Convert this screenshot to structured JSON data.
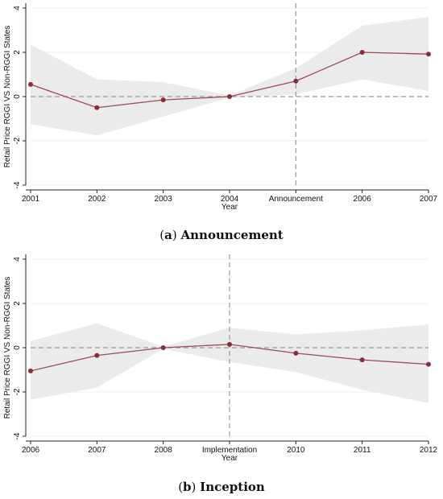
{
  "chart_data": [
    {
      "type": "line",
      "categories": [
        "2001",
        "2002",
        "2003",
        "2004",
        "Announcement",
        "2006",
        "2007"
      ],
      "values": [
        0.55,
        -0.5,
        -0.15,
        0.0,
        0.7,
        2.0,
        1.92
      ],
      "ci_upper": [
        2.35,
        0.78,
        0.65,
        0.05,
        1.28,
        3.2,
        3.6
      ],
      "ci_lower": [
        -1.25,
        -1.75,
        -0.9,
        -0.05,
        0.1,
        0.78,
        0.25
      ],
      "xlabel": "Year",
      "ylabel": "Retail Price RGGI VS Non-RGGI States",
      "ylim": [
        -4,
        4
      ],
      "yticks": [
        "-4",
        "-2",
        "0",
        "2",
        "4"
      ],
      "event_index": 4,
      "colors": {
        "line": "#9e4a57",
        "marker": "#8b2a3a",
        "band": "#ebebeb",
        "ref": "#999999"
      }
    },
    {
      "type": "line",
      "categories": [
        "2006",
        "2007",
        "2008",
        "Implementation",
        "2010",
        "2011",
        "2012"
      ],
      "values": [
        -1.05,
        -0.35,
        0.0,
        0.15,
        -0.25,
        -0.55,
        -0.75
      ],
      "ci_upper": [
        0.3,
        1.1,
        0.05,
        0.9,
        0.6,
        0.78,
        1.05
      ],
      "ci_lower": [
        -2.35,
        -1.8,
        -0.05,
        -0.65,
        -1.1,
        -1.9,
        -2.5
      ],
      "xlabel": "Year",
      "ylabel": "Retail Price RGGI VS Non-RGGI States",
      "ylim": [
        -4,
        4
      ],
      "yticks": [
        "-4",
        "-2",
        "0",
        "2",
        "4"
      ],
      "event_index": 3,
      "colors": {
        "line": "#9e4a57",
        "marker": "#8b2a3a",
        "band": "#ebebeb",
        "ref": "#999999"
      }
    }
  ],
  "captions": [
    {
      "letter": "a",
      "text": "Announcement"
    },
    {
      "letter": "b",
      "text": "Inception"
    }
  ]
}
